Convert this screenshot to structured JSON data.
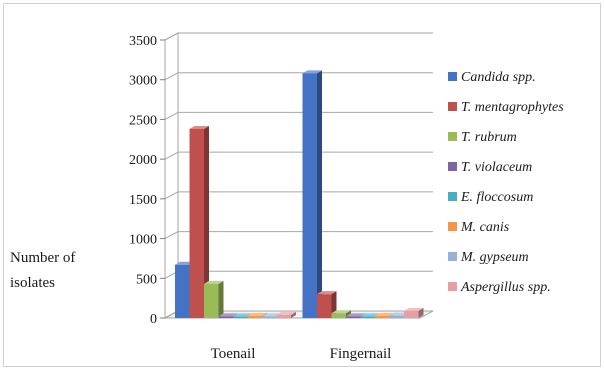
{
  "chart_data": {
    "type": "bar",
    "title": "",
    "xlabel": "",
    "ylabel": "Number of isolates",
    "ylabel_lines": [
      "Number of",
      "isolates"
    ],
    "ylim": [
      0,
      3500
    ],
    "yticks": [
      0,
      500,
      1000,
      1500,
      2000,
      2500,
      3000,
      3500
    ],
    "grid": true,
    "legend_position": "right",
    "style": "3d-clustered-column",
    "categories": [
      "Toenail",
      "Fingernail"
    ],
    "series": [
      {
        "name": "Candida spp.",
        "values": [
          670,
          3080
        ],
        "color": "#4472c4"
      },
      {
        "name": "T. mentagrophytes",
        "values": [
          2380,
          300
        ],
        "color": "#c0504d"
      },
      {
        "name": "T. rubrum",
        "values": [
          430,
          60
        ],
        "color": "#9bbb59"
      },
      {
        "name": "T. violaceum",
        "values": [
          20,
          20
        ],
        "color": "#8064a2"
      },
      {
        "name": "E. floccosum",
        "values": [
          20,
          20
        ],
        "color": "#4bacc6"
      },
      {
        "name": "M. canis",
        "values": [
          25,
          25
        ],
        "color": "#f79646"
      },
      {
        "name": "M. gypseum",
        "values": [
          20,
          30
        ],
        "color": "#95b3d7"
      },
      {
        "name": "Aspergillus spp.",
        "values": [
          40,
          90
        ],
        "color": "#e6a0a4"
      }
    ]
  }
}
